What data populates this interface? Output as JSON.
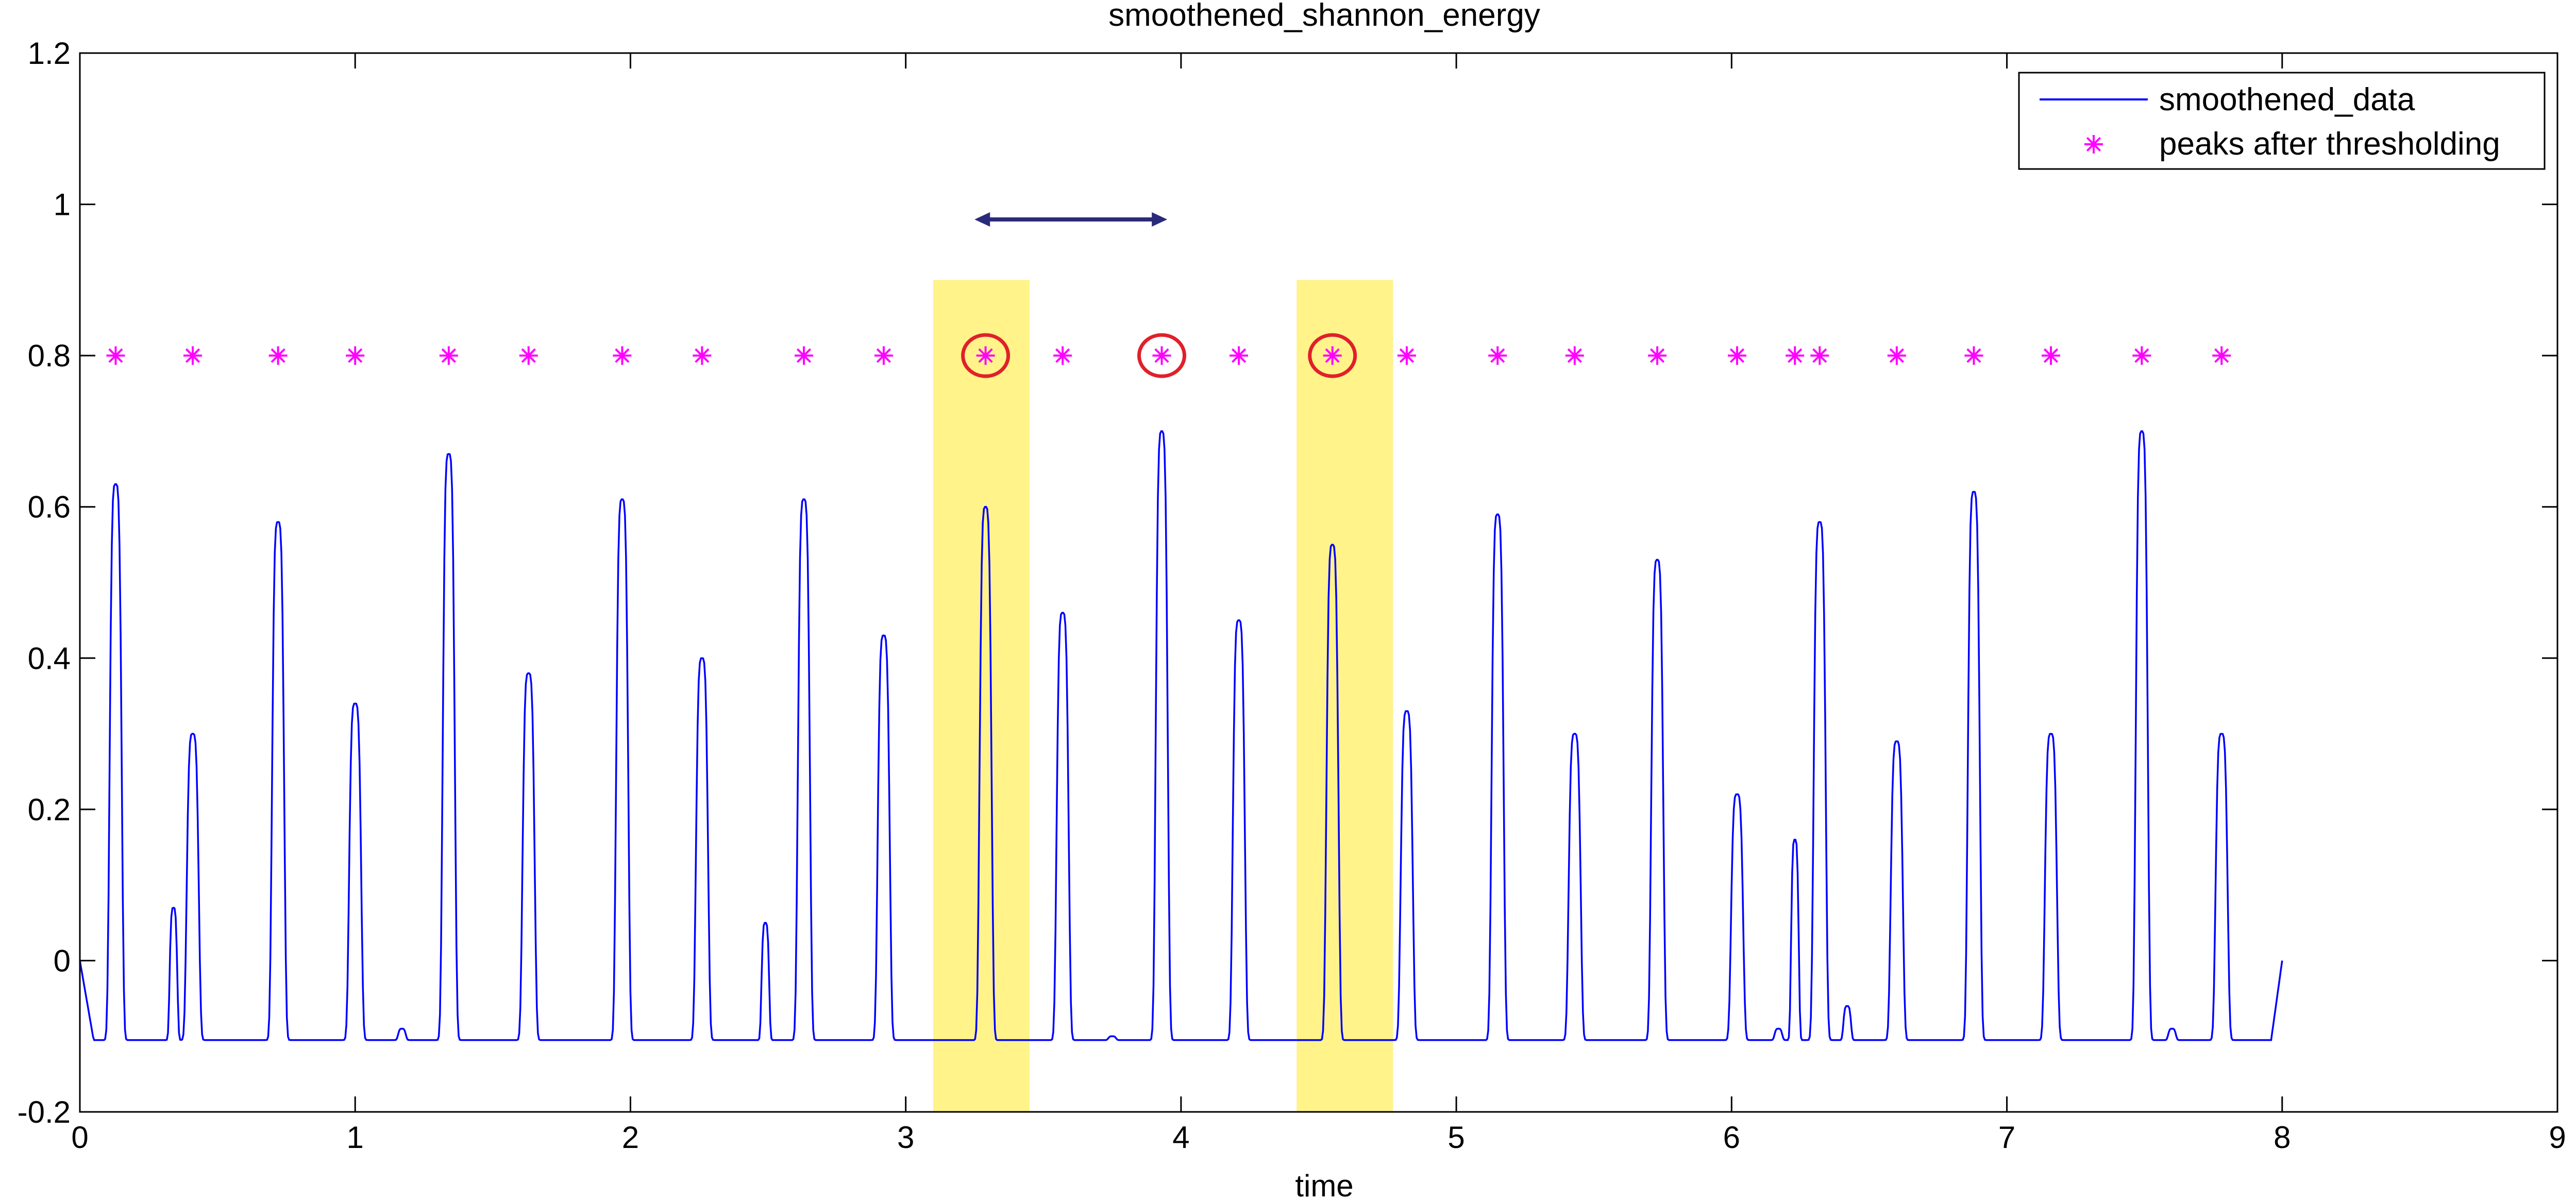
{
  "chart_data": {
    "type": "line",
    "title": "smoothened_shannon_energy",
    "xlabel": "time",
    "ylabel": "",
    "xlim": [
      0,
      9
    ],
    "ylim": [
      -0.2,
      1.2
    ],
    "x_ticks": [
      0,
      1,
      2,
      3,
      4,
      5,
      6,
      7,
      8,
      9
    ],
    "y_ticks": [
      -0.2,
      0,
      0.2,
      0.4,
      0.6,
      0.8,
      1,
      1.2
    ],
    "x_tick_labels": [
      "0",
      "1",
      "2",
      "3",
      "4",
      "5",
      "6",
      "7",
      "8",
      "9"
    ],
    "y_tick_labels": [
      "-0.2",
      "0",
      "0.2",
      "0.4",
      "0.6",
      "0.8",
      "1",
      "1.2"
    ],
    "grid": false,
    "legend_position": "top-right",
    "baseline": -0.105,
    "series": [
      {
        "name": "smoothened_data",
        "kind": "line",
        "color": "#0000ff",
        "start": [
          0,
          0
        ],
        "end": [
          8,
          0
        ],
        "peaks": [
          [
            0.13,
            0.63
          ],
          [
            0.34,
            0.07
          ],
          [
            0.41,
            0.3
          ],
          [
            0.72,
            0.58
          ],
          [
            1.0,
            0.34
          ],
          [
            1.17,
            -0.09
          ],
          [
            1.34,
            0.67
          ],
          [
            1.63,
            0.38
          ],
          [
            1.97,
            0.61
          ],
          [
            2.26,
            0.4
          ],
          [
            2.49,
            0.05
          ],
          [
            2.63,
            0.61
          ],
          [
            2.92,
            0.43
          ],
          [
            3.29,
            0.6
          ],
          [
            3.57,
            0.46
          ],
          [
            3.75,
            -0.1
          ],
          [
            3.93,
            0.7
          ],
          [
            4.21,
            0.45
          ],
          [
            4.55,
            0.55
          ],
          [
            4.82,
            0.33
          ],
          [
            5.15,
            0.59
          ],
          [
            5.43,
            0.3
          ],
          [
            5.73,
            0.53
          ],
          [
            6.02,
            0.22
          ],
          [
            6.17,
            -0.09
          ],
          [
            6.23,
            0.16
          ],
          [
            6.32,
            0.58
          ],
          [
            6.42,
            -0.06
          ],
          [
            6.6,
            0.29
          ],
          [
            6.88,
            0.62
          ],
          [
            7.16,
            0.3
          ],
          [
            7.49,
            0.7
          ],
          [
            7.6,
            -0.09
          ],
          [
            7.78,
            0.3
          ]
        ]
      },
      {
        "name": "peaks after thresholding",
        "kind": "marker",
        "marker": "*",
        "color": "#ff00ff",
        "y": 0.8,
        "x": [
          0.13,
          0.41,
          0.72,
          1.0,
          1.34,
          1.63,
          1.97,
          2.26,
          2.63,
          2.92,
          3.29,
          3.57,
          3.93,
          4.21,
          4.55,
          4.82,
          5.15,
          5.43,
          5.73,
          6.02,
          6.23,
          6.32,
          6.6,
          6.88,
          7.16,
          7.49,
          7.78
        ]
      }
    ],
    "annotations": {
      "highlight_bands": {
        "color": "#fff38a",
        "ranges": [
          [
            3.1,
            3.45
          ],
          [
            4.42,
            4.77
          ]
        ]
      },
      "circled_peaks": {
        "color": "#e0202a",
        "x": [
          3.29,
          3.93,
          4.55
        ],
        "y": 0.8
      },
      "double_arrow": {
        "color": "#2a2a7a",
        "x": [
          3.25,
          3.95
        ],
        "y": 0.98
      }
    }
  }
}
